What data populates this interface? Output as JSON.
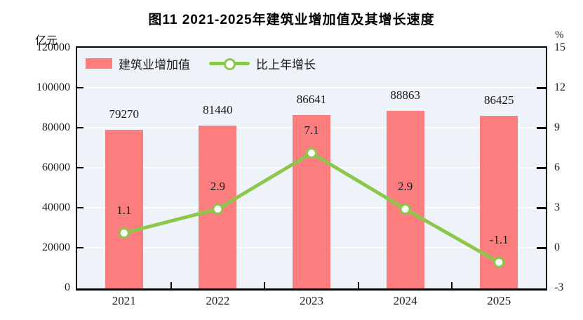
{
  "chart_data": {
    "type": "bar+line",
    "title": "图11  2021-2025年建筑业增加值及其增长速度",
    "categories": [
      "2021",
      "2022",
      "2023",
      "2024",
      "2025"
    ],
    "series": [
      {
        "name": "建筑业增加值",
        "type": "bar",
        "axis": "left",
        "color": "#fc7d7e",
        "values": [
          79270,
          81440,
          86641,
          88863,
          86425
        ],
        "labels": [
          "79270",
          "81440",
          "86641",
          "88863",
          "86425"
        ]
      },
      {
        "name": "比上年增长",
        "type": "line",
        "axis": "right",
        "color": "#8cc74c",
        "marker": "circle-white",
        "values": [
          1.1,
          2.9,
          7.1,
          2.9,
          -1.1
        ],
        "labels": [
          "1.1",
          "2.9",
          "7.1",
          "2.9",
          "-1.1"
        ]
      }
    ],
    "left_axis": {
      "unit": "亿元",
      "min": 0,
      "max": 120000,
      "ticks": [
        0,
        20000,
        40000,
        60000,
        80000,
        100000,
        120000
      ]
    },
    "right_axis": {
      "unit": "%",
      "min": -3,
      "max": 15,
      "ticks": [
        -3,
        0,
        3,
        6,
        9,
        12,
        15
      ]
    },
    "legend_position": "top-left-inside",
    "grid": true,
    "colors": {
      "plot_bg": "#edf3f8",
      "grid": "#ffffff",
      "border": "#000000",
      "text": "#1a1a1a"
    }
  }
}
